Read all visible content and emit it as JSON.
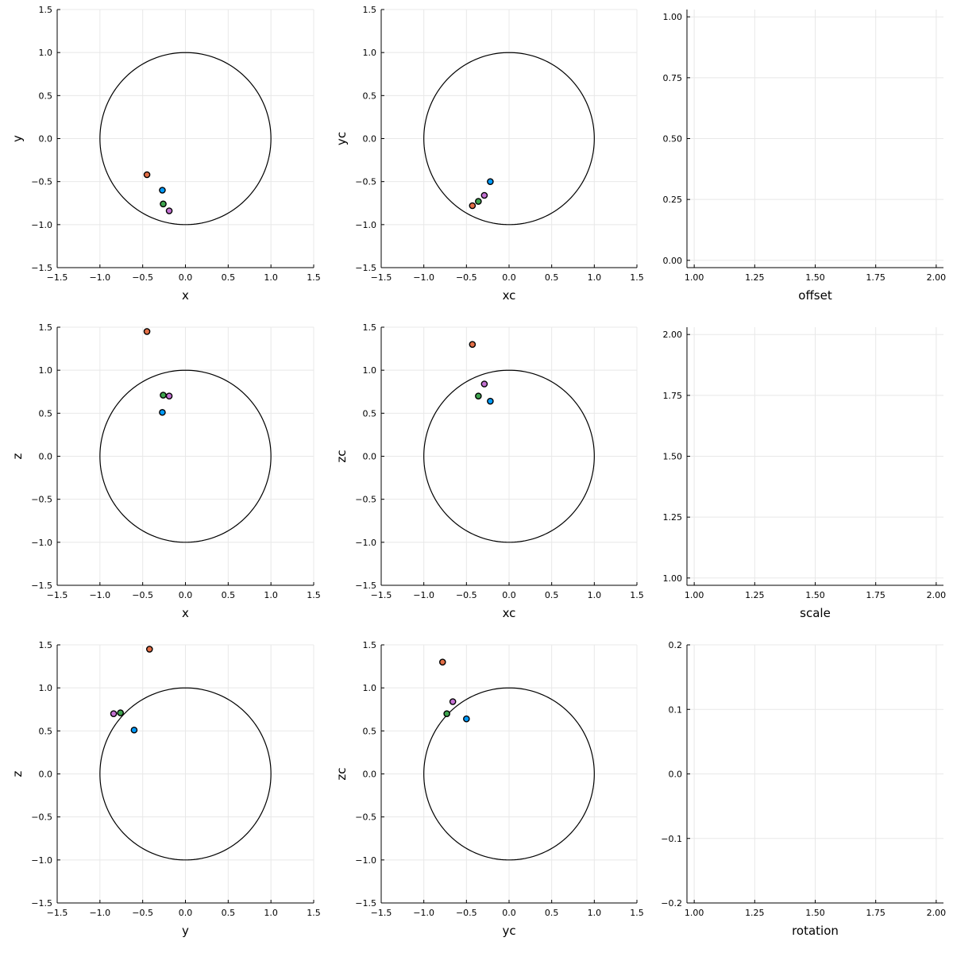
{
  "colors": {
    "series": [
      "#009AFA",
      "#E36F47",
      "#3EA44E",
      "#C371D2"
    ],
    "marker_edge": "#000000",
    "circle": "#000000",
    "grid": "#e8e8e8"
  },
  "chart_data": [
    {
      "id": "xy",
      "type": "scatter",
      "xlabel": "x",
      "ylabel": "y",
      "xlim": [
        -1.5,
        1.5
      ],
      "ylim": [
        -1.5,
        1.5
      ],
      "xticks": [
        -1.5,
        -1.0,
        -0.5,
        0.0,
        0.5,
        1.0,
        1.5
      ],
      "yticks": [
        -1.5,
        -1.0,
        -0.5,
        0.0,
        0.5,
        1.0,
        1.5
      ],
      "tick_labels_x": [
        "−1.5",
        "−1.0",
        "−0.5",
        "0.0",
        "0.5",
        "1.0",
        "1.5"
      ],
      "tick_labels_y": [
        "−1.5",
        "−1.0",
        "−0.5",
        "0.0",
        "0.5",
        "1.0",
        "1.5"
      ],
      "unit_circle": true,
      "grid": true,
      "series": [
        {
          "x": [
            -0.27
          ],
          "y": [
            -0.6
          ]
        },
        {
          "x": [
            -0.45
          ],
          "y": [
            -0.42
          ]
        },
        {
          "x": [
            -0.26
          ],
          "y": [
            -0.76
          ]
        },
        {
          "x": [
            -0.19
          ],
          "y": [
            -0.84
          ]
        }
      ]
    },
    {
      "id": "xcyc",
      "type": "scatter",
      "xlabel": "xc",
      "ylabel": "yc",
      "xlim": [
        -1.5,
        1.5
      ],
      "ylim": [
        -1.5,
        1.5
      ],
      "xticks": [
        -1.5,
        -1.0,
        -0.5,
        0.0,
        0.5,
        1.0,
        1.5
      ],
      "yticks": [
        -1.5,
        -1.0,
        -0.5,
        0.0,
        0.5,
        1.0,
        1.5
      ],
      "tick_labels_x": [
        "−1.5",
        "−1.0",
        "−0.5",
        "0.0",
        "0.5",
        "1.0",
        "1.5"
      ],
      "tick_labels_y": [
        "−1.5",
        "−1.0",
        "−0.5",
        "0.0",
        "0.5",
        "1.0",
        "1.5"
      ],
      "unit_circle": true,
      "grid": true,
      "series": [
        {
          "x": [
            -0.22
          ],
          "y": [
            -0.5
          ]
        },
        {
          "x": [
            -0.43
          ],
          "y": [
            -0.78
          ]
        },
        {
          "x": [
            -0.36
          ],
          "y": [
            -0.73
          ]
        },
        {
          "x": [
            -0.29
          ],
          "y": [
            -0.66
          ]
        }
      ]
    },
    {
      "id": "offset",
      "type": "scatter",
      "xlabel": "offset",
      "ylabel": "",
      "xlim": [
        0.97,
        2.03
      ],
      "ylim": [
        -0.03,
        1.03
      ],
      "xticks": [
        1.0,
        1.25,
        1.5,
        1.75,
        2.0
      ],
      "yticks": [
        0.0,
        0.25,
        0.5,
        0.75,
        1.0
      ],
      "tick_labels_x": [
        "1.00",
        "1.25",
        "1.50",
        "1.75",
        "2.00"
      ],
      "tick_labels_y": [
        "0.00",
        "0.25",
        "0.50",
        "0.75",
        "1.00"
      ],
      "unit_circle": false,
      "grid": true,
      "series": []
    },
    {
      "id": "xz",
      "type": "scatter",
      "xlabel": "x",
      "ylabel": "z",
      "xlim": [
        -1.5,
        1.5
      ],
      "ylim": [
        -1.5,
        1.5
      ],
      "xticks": [
        -1.5,
        -1.0,
        -0.5,
        0.0,
        0.5,
        1.0,
        1.5
      ],
      "yticks": [
        -1.5,
        -1.0,
        -0.5,
        0.0,
        0.5,
        1.0,
        1.5
      ],
      "tick_labels_x": [
        "−1.5",
        "−1.0",
        "−0.5",
        "0.0",
        "0.5",
        "1.0",
        "1.5"
      ],
      "tick_labels_y": [
        "−1.5",
        "−1.0",
        "−0.5",
        "0.0",
        "0.5",
        "1.0",
        "1.5"
      ],
      "unit_circle": true,
      "grid": true,
      "series": [
        {
          "x": [
            -0.27
          ],
          "y": [
            0.51
          ]
        },
        {
          "x": [
            -0.45
          ],
          "y": [
            1.45
          ]
        },
        {
          "x": [
            -0.26
          ],
          "y": [
            0.71
          ]
        },
        {
          "x": [
            -0.19
          ],
          "y": [
            0.7
          ]
        }
      ]
    },
    {
      "id": "xczc",
      "type": "scatter",
      "xlabel": "xc",
      "ylabel": "zc",
      "xlim": [
        -1.5,
        1.5
      ],
      "ylim": [
        -1.5,
        1.5
      ],
      "xticks": [
        -1.5,
        -1.0,
        -0.5,
        0.0,
        0.5,
        1.0,
        1.5
      ],
      "yticks": [
        -1.5,
        -1.0,
        -0.5,
        0.0,
        0.5,
        1.0,
        1.5
      ],
      "tick_labels_x": [
        "−1.5",
        "−1.0",
        "−0.5",
        "0.0",
        "0.5",
        "1.0",
        "1.5"
      ],
      "tick_labels_y": [
        "−1.5",
        "−1.0",
        "−0.5",
        "0.0",
        "0.5",
        "1.0",
        "1.5"
      ],
      "unit_circle": true,
      "grid": true,
      "series": [
        {
          "x": [
            -0.22
          ],
          "y": [
            0.64
          ]
        },
        {
          "x": [
            -0.43
          ],
          "y": [
            1.3
          ]
        },
        {
          "x": [
            -0.36
          ],
          "y": [
            0.7
          ]
        },
        {
          "x": [
            -0.29
          ],
          "y": [
            0.84
          ]
        }
      ]
    },
    {
      "id": "scale",
      "type": "scatter",
      "xlabel": "scale",
      "ylabel": "",
      "xlim": [
        0.97,
        2.03
      ],
      "ylim": [
        0.97,
        2.03
      ],
      "xticks": [
        1.0,
        1.25,
        1.5,
        1.75,
        2.0
      ],
      "yticks": [
        1.0,
        1.25,
        1.5,
        1.75,
        2.0
      ],
      "tick_labels_x": [
        "1.00",
        "1.25",
        "1.50",
        "1.75",
        "2.00"
      ],
      "tick_labels_y": [
        "1.00",
        "1.25",
        "1.50",
        "1.75",
        "2.00"
      ],
      "unit_circle": false,
      "grid": true,
      "series": []
    },
    {
      "id": "yz",
      "type": "scatter",
      "xlabel": "y",
      "ylabel": "z",
      "xlim": [
        -1.5,
        1.5
      ],
      "ylim": [
        -1.5,
        1.5
      ],
      "xticks": [
        -1.5,
        -1.0,
        -0.5,
        0.0,
        0.5,
        1.0,
        1.5
      ],
      "yticks": [
        -1.5,
        -1.0,
        -0.5,
        0.0,
        0.5,
        1.0,
        1.5
      ],
      "tick_labels_x": [
        "−1.5",
        "−1.0",
        "−0.5",
        "0.0",
        "0.5",
        "1.0",
        "1.5"
      ],
      "tick_labels_y": [
        "−1.5",
        "−1.0",
        "−0.5",
        "0.0",
        "0.5",
        "1.0",
        "1.5"
      ],
      "unit_circle": true,
      "grid": true,
      "series": [
        {
          "x": [
            -0.6
          ],
          "y": [
            0.51
          ]
        },
        {
          "x": [
            -0.42
          ],
          "y": [
            1.45
          ]
        },
        {
          "x": [
            -0.76
          ],
          "y": [
            0.71
          ]
        },
        {
          "x": [
            -0.84
          ],
          "y": [
            0.7
          ]
        }
      ]
    },
    {
      "id": "yczc",
      "type": "scatter",
      "xlabel": "yc",
      "ylabel": "zc",
      "xlim": [
        -1.5,
        1.5
      ],
      "ylim": [
        -1.5,
        1.5
      ],
      "xticks": [
        -1.5,
        -1.0,
        -0.5,
        0.0,
        0.5,
        1.0,
        1.5
      ],
      "yticks": [
        -1.5,
        -1.0,
        -0.5,
        0.0,
        0.5,
        1.0,
        1.5
      ],
      "tick_labels_x": [
        "−1.5",
        "−1.0",
        "−0.5",
        "0.0",
        "0.5",
        "1.0",
        "1.5"
      ],
      "tick_labels_y": [
        "−1.5",
        "−1.0",
        "−0.5",
        "0.0",
        "0.5",
        "1.0",
        "1.5"
      ],
      "unit_circle": true,
      "grid": true,
      "series": [
        {
          "x": [
            -0.5
          ],
          "y": [
            0.64
          ]
        },
        {
          "x": [
            -0.78
          ],
          "y": [
            1.3
          ]
        },
        {
          "x": [
            -0.73
          ],
          "y": [
            0.7
          ]
        },
        {
          "x": [
            -0.66
          ],
          "y": [
            0.84
          ]
        }
      ]
    },
    {
      "id": "rotation",
      "type": "scatter",
      "xlabel": "rotation",
      "ylabel": "",
      "xlim": [
        0.97,
        2.03
      ],
      "ylim": [
        -0.2,
        0.2
      ],
      "xticks": [
        1.0,
        1.25,
        1.5,
        1.75,
        2.0
      ],
      "yticks": [
        -0.2,
        -0.1,
        0.0,
        0.1,
        0.2
      ],
      "tick_labels_x": [
        "1.00",
        "1.25",
        "1.50",
        "1.75",
        "2.00"
      ],
      "tick_labels_y": [
        "−0.2",
        "−0.1",
        "0.0",
        "0.1",
        "0.2"
      ],
      "unit_circle": false,
      "grid": true,
      "series": []
    }
  ]
}
